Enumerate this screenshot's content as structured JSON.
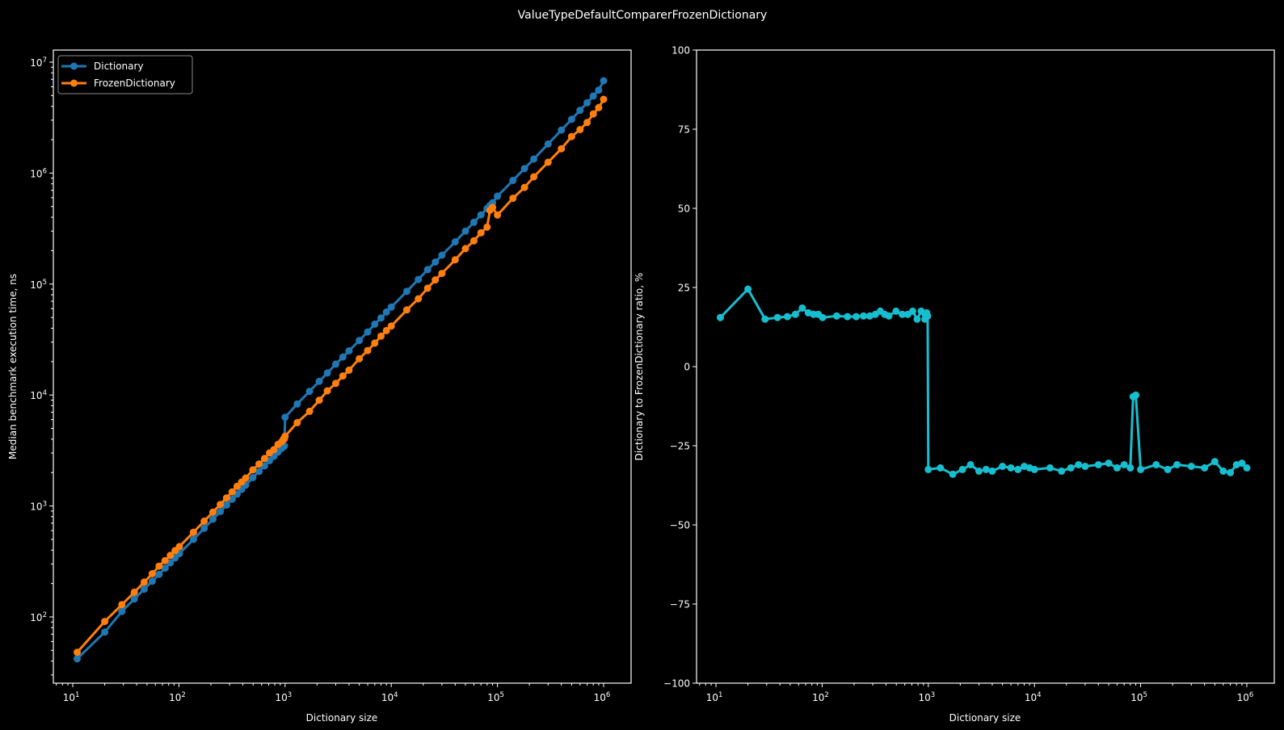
{
  "title": "ValueTypeDefaultComparerFrozenDictionary",
  "colors": {
    "background": "#000000",
    "dictionary": "#1f77b4",
    "frozen": "#ff7f0e",
    "ratio": "#17becf",
    "axes": "#ffffff"
  },
  "chart_data": [
    {
      "type": "line",
      "xlabel": "Dictionary size",
      "ylabel": "Median benchmark execution time, ns",
      "xscale": "log",
      "yscale": "log",
      "xlim": [
        6.56,
        1816000
      ],
      "ylim": [
        25.3,
        12850000
      ],
      "x_tick_labels": [
        "10^1",
        "10^2",
        "10^3",
        "10^4",
        "10^5",
        "10^6"
      ],
      "y_tick_labels": [
        "10^2",
        "10^3",
        "10^4",
        "10^5",
        "10^6",
        "10^7"
      ],
      "legend": "top-left",
      "grid": false,
      "x": [
        11,
        20,
        29,
        38,
        47,
        56,
        65,
        74,
        83,
        92,
        101,
        137,
        173,
        209,
        245,
        281,
        317,
        353,
        389,
        425,
        497,
        569,
        641,
        713,
        785,
        857,
        929,
        965,
        985,
        1000,
        1300,
        1700,
        2100,
        2500,
        3000,
        3500,
        4000,
        5000,
        6000,
        7000,
        8000,
        9000,
        10000,
        14000,
        18000,
        22000,
        26000,
        30000,
        40000,
        50000,
        60000,
        70000,
        80000,
        85000,
        90000,
        100000,
        140000,
        180000,
        220000,
        300000,
        400000,
        500000,
        600000,
        700000,
        800000,
        900000,
        1000000
      ],
      "series": [
        {
          "name": "Dictionary",
          "values": [
            42,
            73,
            112,
            145,
            178,
            210,
            242,
            275,
            308,
            340,
            372,
            500,
            630,
            760,
            890,
            1020,
            1150,
            1280,
            1410,
            1540,
            1800,
            2050,
            2300,
            2560,
            2800,
            3050,
            3300,
            3420,
            3480,
            6300,
            8300,
            10800,
            13300,
            15800,
            19000,
            22000,
            25000,
            31000,
            37000,
            43500,
            49500,
            56000,
            62000,
            86000,
            110000,
            135000,
            158000,
            182000,
            240000,
            300000,
            360000,
            420000,
            480000,
            510000,
            540000,
            620000,
            860000,
            1100000,
            1340000,
            1830000,
            2440000,
            3050000,
            3680000,
            4300000,
            4950000,
            5600000,
            6800000
          ]
        },
        {
          "name": "FrozenDictionary",
          "values": [
            48,
            91,
            129,
            167,
            206,
            245,
            287,
            322,
            359,
            396,
            430,
            580,
            730,
            880,
            1032,
            1183,
            1340,
            1504,
            1643,
            1786,
            2115,
            2388,
            2680,
            3008,
            3220,
            3584,
            3795,
            4001,
            4037,
            4253,
            5640,
            7130,
            8980,
            10900,
            12730,
            14850,
            16750,
            21230,
            25160,
            29360,
            33900,
            38080,
            41850,
            58480,
            73700,
            91800,
            109000,
            124670,
            165600,
            208500,
            244800,
            289800,
            326400,
            461550,
            491400,
            418500,
            593400,
            742500,
            924600,
            1253550,
            1659200,
            2135000,
            2465600,
            2859500,
            3415500,
            3892000,
            4624000
          ]
        }
      ]
    },
    {
      "type": "line",
      "xlabel": "Dictionary size",
      "ylabel": "Dictionary to FrozenDictionary ratio, %",
      "xscale": "log",
      "yscale": "linear",
      "xlim": [
        6.56,
        1816000
      ],
      "ylim": [
        -100,
        100
      ],
      "x_tick_labels": [
        "10^1",
        "10^2",
        "10^3",
        "10^4",
        "10^5",
        "10^6"
      ],
      "y_ticks": [
        -100,
        -75,
        -50,
        -25,
        0,
        25,
        50,
        75,
        100
      ],
      "y_tick_labels": [
        "−100",
        "−75",
        "−50",
        "−25",
        "0",
        "25",
        "50",
        "75",
        "100"
      ],
      "grid": false,
      "x": [
        11,
        20,
        29,
        38,
        47,
        56,
        65,
        74,
        83,
        92,
        101,
        137,
        173,
        209,
        245,
        281,
        317,
        353,
        389,
        425,
        497,
        569,
        641,
        713,
        785,
        857,
        929,
        965,
        985,
        1000,
        1300,
        1700,
        2100,
        2500,
        3000,
        3500,
        4000,
        5000,
        6000,
        7000,
        8000,
        9000,
        10000,
        14000,
        18000,
        22000,
        26000,
        30000,
        40000,
        50000,
        60000,
        70000,
        80000,
        85000,
        90000,
        100000,
        140000,
        180000,
        220000,
        300000,
        400000,
        500000,
        600000,
        700000,
        800000,
        900000,
        1000000
      ],
      "series": [
        {
          "values": [
            15.5,
            24.5,
            15,
            15.5,
            15.8,
            16.5,
            18.5,
            17,
            16.5,
            16.5,
            15.5,
            16,
            15.8,
            15.8,
            16,
            16,
            16.5,
            17.5,
            16.5,
            16,
            17.5,
            16.5,
            16.5,
            17.5,
            15,
            17.5,
            15,
            17,
            16,
            -32.5,
            -32,
            -34,
            -32.5,
            -31,
            -33,
            -32.5,
            -33,
            -31.5,
            -32,
            -32.5,
            -31.5,
            -32,
            -32.5,
            -32,
            -33,
            -32,
            -31,
            -31.5,
            -31,
            -30.5,
            -32,
            -31,
            -32,
            -9.5,
            -9,
            -32.5,
            -31,
            -32.5,
            -31,
            -31.5,
            -32,
            -30,
            -33,
            -33.5,
            -31,
            -30.5,
            -32
          ]
        }
      ]
    }
  ]
}
